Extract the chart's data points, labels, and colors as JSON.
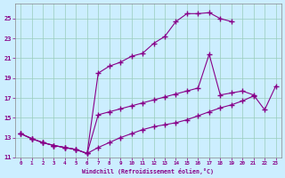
{
  "xlabel": "Windchill (Refroidissement éolien,°C)",
  "background_color": "#cceeff",
  "line_color": "#880088",
  "xlim": [
    -0.5,
    23.5
  ],
  "ylim": [
    11,
    26.5
  ],
  "xticks": [
    0,
    1,
    2,
    3,
    4,
    5,
    6,
    7,
    8,
    9,
    10,
    11,
    12,
    13,
    14,
    15,
    16,
    17,
    18,
    19,
    20,
    21,
    22,
    23
  ],
  "yticks": [
    11,
    13,
    15,
    17,
    19,
    21,
    23,
    25
  ],
  "series": [
    {
      "x": [
        0,
        1,
        2,
        3,
        4,
        5,
        6,
        7,
        8,
        9,
        10,
        11,
        12,
        13,
        14,
        15,
        16,
        17,
        18,
        19
      ],
      "y": [
        13.4,
        12.9,
        12.5,
        12.2,
        12.0,
        11.8,
        11.4,
        19.5,
        20.2,
        20.6,
        21.2,
        21.5,
        22.5,
        23.2,
        24.7,
        25.5,
        25.5,
        25.6,
        25.0,
        24.7
      ]
    },
    {
      "x": [
        0,
        1,
        2,
        3,
        4,
        5,
        6,
        7,
        8,
        9,
        10,
        11,
        12,
        13,
        14,
        15,
        16,
        17,
        18,
        19,
        20,
        21,
        22,
        23
      ],
      "y": [
        13.4,
        12.9,
        12.5,
        12.2,
        12.0,
        11.8,
        11.4,
        15.3,
        15.6,
        15.9,
        16.2,
        16.5,
        16.8,
        17.1,
        17.4,
        17.7,
        18.0,
        21.4,
        17.3,
        17.5,
        17.7,
        17.3,
        15.8,
        18.2
      ]
    },
    {
      "x": [
        0,
        1,
        2,
        3,
        4,
        5,
        6,
        7,
        8,
        9,
        10,
        11,
        12,
        13,
        14,
        15,
        16,
        17,
        18,
        19,
        20,
        21
      ],
      "y": [
        13.4,
        12.9,
        12.5,
        12.2,
        12.0,
        11.8,
        11.4,
        12.0,
        12.5,
        13.0,
        13.4,
        13.8,
        14.1,
        14.3,
        14.5,
        14.8,
        15.2,
        15.6,
        16.0,
        16.3,
        16.7,
        17.2
      ]
    }
  ]
}
